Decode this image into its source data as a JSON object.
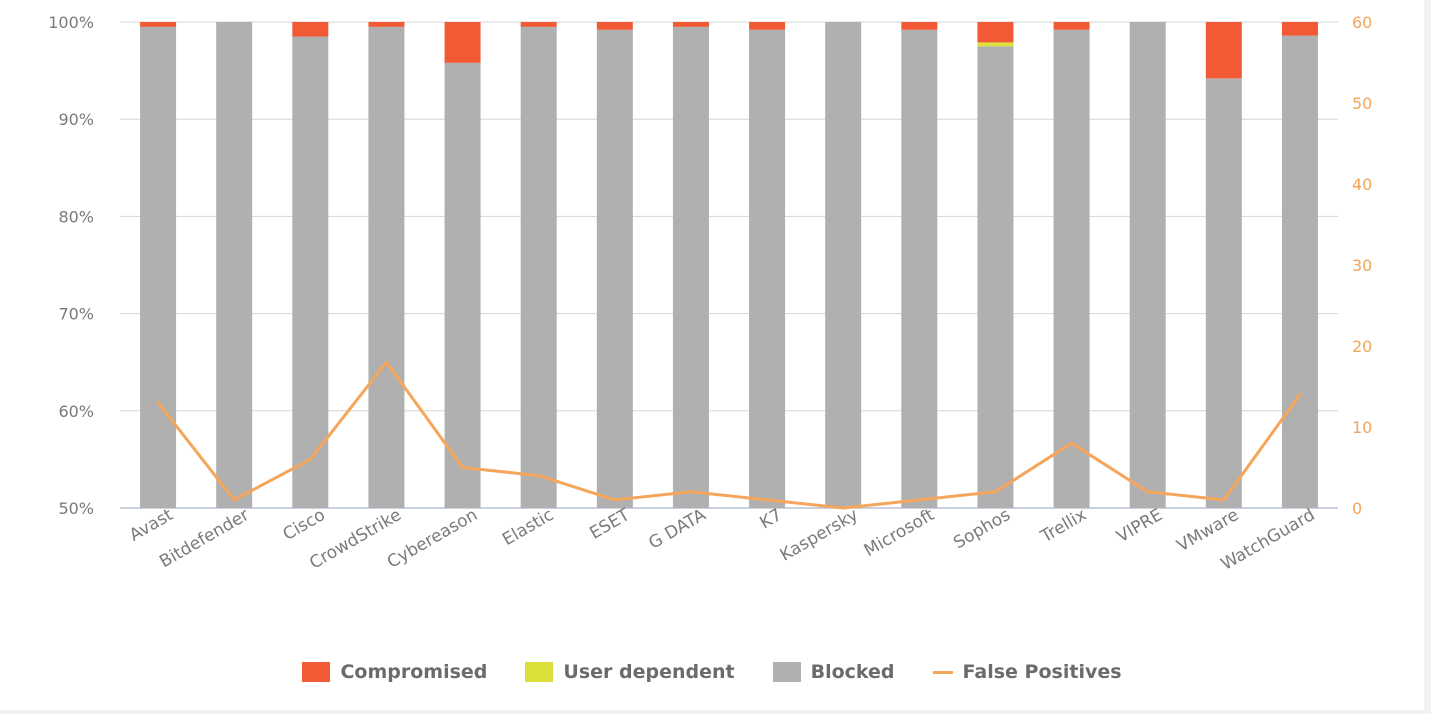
{
  "chart_data": {
    "type": "bar",
    "stacked": true,
    "categories": [
      "Avast",
      "Bitdefender",
      "Cisco",
      "CrowdStrike",
      "Cybereason",
      "Elastic",
      "ESET",
      "G DATA",
      "K7",
      "Kaspersky",
      "Microsoft",
      "Sophos",
      "Trellix",
      "VIPRE",
      "VMware",
      "WatchGuard"
    ],
    "series": [
      {
        "name": "Blocked",
        "values": [
          99.5,
          100,
          98.5,
          99.5,
          95.8,
          99.5,
          99.2,
          99.5,
          99.2,
          100,
          99.2,
          97.5,
          99.2,
          100,
          94.2,
          98.6
        ],
        "color": "#b0b0b0"
      },
      {
        "name": "User dependent",
        "values": [
          0,
          0,
          0,
          0,
          0,
          0,
          0,
          0,
          0,
          0,
          0,
          0.4,
          0,
          0,
          0,
          0
        ],
        "color": "#dbe03a"
      },
      {
        "name": "Compromised",
        "values": [
          0.5,
          0,
          1.5,
          0.5,
          4.2,
          0.5,
          0.8,
          0.5,
          0.8,
          0,
          0.8,
          2.1,
          0.8,
          0,
          5.8,
          1.4
        ],
        "color": "#f15a35"
      }
    ],
    "line": {
      "name": "False Positives",
      "values": [
        13,
        1,
        6,
        18,
        5,
        4,
        1,
        2,
        1,
        0,
        1,
        2,
        8,
        2,
        1,
        14
      ],
      "color": "#f5a65b",
      "axis": "right"
    },
    "y_left": {
      "range": [
        50,
        100
      ],
      "ticks": [
        "50%",
        "60%",
        "70%",
        "80%",
        "90%",
        "100%"
      ]
    },
    "y_right": {
      "range": [
        0,
        60
      ],
      "ticks": [
        "0",
        "10",
        "20",
        "30",
        "40",
        "50",
        "60"
      ]
    },
    "grid": true,
    "legend_position": "bottom"
  },
  "legend": [
    {
      "label": "Compromised",
      "color": "#f15a35",
      "kind": "box"
    },
    {
      "label": "User dependent",
      "color": "#dbe03a",
      "kind": "box"
    },
    {
      "label": "Blocked",
      "color": "#b0b0b0",
      "kind": "box"
    },
    {
      "label": "False Positives",
      "color": "#f5a65b",
      "kind": "line"
    }
  ]
}
